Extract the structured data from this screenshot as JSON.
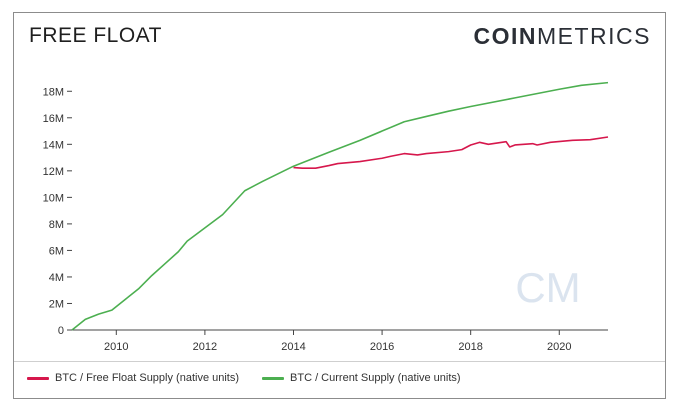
{
  "header": {
    "title": "FREE FLOAT",
    "brand_bold": "COIN",
    "brand_light": "METRICS"
  },
  "colors": {
    "free_float": "#d6174c",
    "current_supply": "#4caf50",
    "axis": "#444444",
    "watermark": "#dbe4ef"
  },
  "watermark": {
    "text": "CM"
  },
  "chart_data": {
    "type": "line",
    "title": "FREE FLOAT",
    "xlabel": "",
    "ylabel": "",
    "xlim": [
      2009.0,
      2021.1
    ],
    "ylim": [
      0,
      19000000
    ],
    "grid": false,
    "legend_position": "bottom-left",
    "x_ticks": [
      2010,
      2012,
      2014,
      2016,
      2018,
      2020
    ],
    "x_tick_labels": [
      "2010",
      "2012",
      "2014",
      "2016",
      "2018",
      "2020"
    ],
    "y_ticks": [
      0,
      2000000,
      4000000,
      6000000,
      8000000,
      10000000,
      12000000,
      14000000,
      16000000,
      18000000
    ],
    "y_tick_labels": [
      "0",
      "2M",
      "4M",
      "6M",
      "8M",
      "10M",
      "12M",
      "14M",
      "16M",
      "18M"
    ],
    "series": [
      {
        "name": "BTC / Free Float Supply (native units)",
        "color": "#d6174c",
        "points": [
          [
            2014.0,
            12250000
          ],
          [
            2014.2,
            12200000
          ],
          [
            2014.5,
            12200000
          ],
          [
            2014.8,
            12400000
          ],
          [
            2015.0,
            12550000
          ],
          [
            2015.5,
            12700000
          ],
          [
            2016.0,
            12950000
          ],
          [
            2016.2,
            13100000
          ],
          [
            2016.5,
            13300000
          ],
          [
            2016.8,
            13200000
          ],
          [
            2017.0,
            13300000
          ],
          [
            2017.5,
            13450000
          ],
          [
            2017.8,
            13600000
          ],
          [
            2018.0,
            13950000
          ],
          [
            2018.2,
            14150000
          ],
          [
            2018.4,
            14000000
          ],
          [
            2018.8,
            14200000
          ],
          [
            2018.88,
            13800000
          ],
          [
            2019.0,
            13950000
          ],
          [
            2019.4,
            14050000
          ],
          [
            2019.5,
            13950000
          ],
          [
            2019.8,
            14150000
          ],
          [
            2020.3,
            14300000
          ],
          [
            2020.7,
            14350000
          ],
          [
            2021.1,
            14550000
          ]
        ]
      },
      {
        "name": "BTC / Current Supply (native units)",
        "color": "#4caf50",
        "points": [
          [
            2009.0,
            0
          ],
          [
            2009.3,
            800000
          ],
          [
            2009.6,
            1200000
          ],
          [
            2009.9,
            1500000
          ],
          [
            2010.2,
            2300000
          ],
          [
            2010.5,
            3100000
          ],
          [
            2010.8,
            4100000
          ],
          [
            2011.1,
            5000000
          ],
          [
            2011.4,
            5900000
          ],
          [
            2011.6,
            6700000
          ],
          [
            2012.0,
            7700000
          ],
          [
            2012.4,
            8700000
          ],
          [
            2012.9,
            10500000
          ],
          [
            2013.3,
            11200000
          ],
          [
            2014.0,
            12350000
          ],
          [
            2014.8,
            13400000
          ],
          [
            2015.5,
            14300000
          ],
          [
            2016.0,
            15000000
          ],
          [
            2016.5,
            15700000
          ],
          [
            2017.0,
            16100000
          ],
          [
            2017.5,
            16500000
          ],
          [
            2018.0,
            16850000
          ],
          [
            2019.0,
            17500000
          ],
          [
            2020.0,
            18150000
          ],
          [
            2020.5,
            18450000
          ],
          [
            2021.1,
            18650000
          ]
        ]
      }
    ]
  }
}
